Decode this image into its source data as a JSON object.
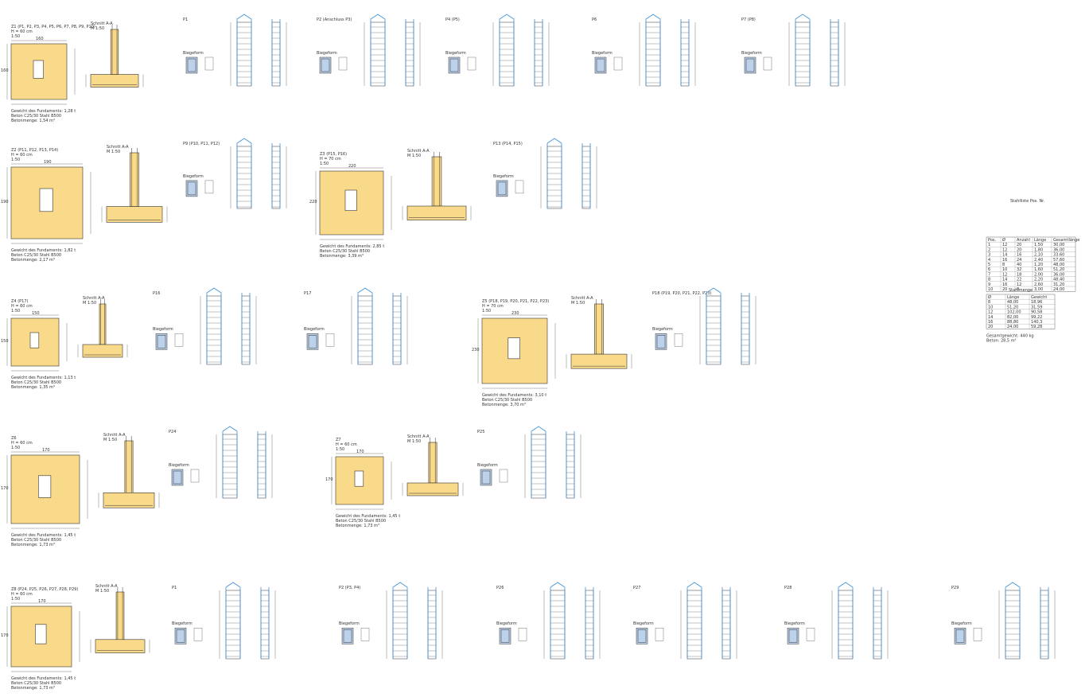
{
  "sheet": {
    "foundations": [
      {
        "id": "f1",
        "title": "Z1 (P1, P2, P3, P4, P5, P6, P7, P8, P9, P10)",
        "subtitle": "H = 60 cm",
        "scale": "1:50",
        "plan_width": "160",
        "plan_height": "160",
        "note1": "Gewicht des Fundaments: 1,28 t",
        "note2": "Beton C25/30 Stahl B500",
        "note3": "Betonmenge: 1,54 m³"
      },
      {
        "id": "f2",
        "title": "Z2 (P11, P12, P13, P14)",
        "subtitle": "H = 60 cm",
        "scale": "1:50",
        "plan_width": "190",
        "plan_height": "190",
        "note1": "Gewicht des Fundaments: 1,82 t",
        "note2": "Beton C25/30 Stahl B500",
        "note3": "Betonmenge: 2,17 m³"
      },
      {
        "id": "f3",
        "title": "Z3 (P15, P16)",
        "subtitle": "H = 70 cm",
        "scale": "1:50",
        "plan_width": "220",
        "plan_height": "220",
        "note1": "Gewicht des Fundaments: 2,85 t",
        "note2": "Beton C25/30 Stahl B500",
        "note3": "Betonmenge: 3,39 m³"
      },
      {
        "id": "f4",
        "title": "Z4 (P17)",
        "subtitle": "H = 60 cm",
        "scale": "1:50",
        "plan_width": "150",
        "plan_height": "150",
        "note1": "Gewicht des Fundaments: 1,13 t",
        "note2": "Beton C25/30 Stahl B500",
        "note3": "Betonmenge: 1,35 m³"
      },
      {
        "id": "f5",
        "title": "Z5 (P18, P19, P20, P21, P22, P23)",
        "subtitle": "H = 70 cm",
        "scale": "1:50",
        "plan_width": "230",
        "plan_height": "230",
        "note1": "Gewicht des Fundaments: 3,10 t",
        "note2": "Beton C25/30 Stahl B500",
        "note3": "Betonmenge: 3,70 m³"
      },
      {
        "id": "f6",
        "title": "Z6",
        "subtitle": "H = 60 cm",
        "scale": "1:50",
        "plan_width": "170",
        "plan_height": "170",
        "note1": "Gewicht des Fundaments: 1,45 t",
        "note2": "Beton C25/30 Stahl B500",
        "note3": "Betonmenge: 1,73 m³"
      },
      {
        "id": "f7",
        "title": "Z7",
        "subtitle": "H = 60 cm",
        "scale": "1:50",
        "plan_width": "170",
        "plan_height": "170",
        "note1": "Gewicht des Fundaments: 1,45 t",
        "note2": "Beton C25/30 Stahl B500",
        "note3": "Betonmenge: 1,73 m³"
      },
      {
        "id": "f8",
        "title": "Z8 (P24, P25, P26, P27, P28, P29)",
        "subtitle": "H = 60 cm",
        "scale": "1:50",
        "plan_width": "170",
        "plan_height": "170",
        "note1": "Gewicht des Fundaments: 1,45 t",
        "note2": "Beton C25/30 Stahl B500",
        "note3": "Betonmenge: 1,73 m³"
      }
    ],
    "columns": [
      {
        "id": "c1",
        "label": "P1"
      },
      {
        "id": "c2",
        "label": "P2 (Anschluss P3)"
      },
      {
        "id": "c3",
        "label": "P4 (P5)"
      },
      {
        "id": "c4",
        "label": "P6"
      },
      {
        "id": "c5",
        "label": "P7 (P8)"
      },
      {
        "id": "c6",
        "label": "P9 (P10, P11, P12)"
      },
      {
        "id": "c7",
        "label": "P13 (P14, P15)"
      },
      {
        "id": "c8",
        "label": "P16"
      },
      {
        "id": "c9",
        "label": "P17"
      },
      {
        "id": "c10",
        "label": "P18 (P19, P20, P21, P22, P23)"
      },
      {
        "id": "c11",
        "label": "P24"
      },
      {
        "id": "c12",
        "label": "P25"
      },
      {
        "id": "c13",
        "label": "P1"
      },
      {
        "id": "c14",
        "label": "P2 (P3, P4)"
      },
      {
        "id": "c15",
        "label": "P26"
      },
      {
        "id": "c16",
        "label": "P27"
      },
      {
        "id": "c17",
        "label": "P28"
      },
      {
        "id": "c18",
        "label": "P29"
      }
    ],
    "section_label": "Schnitt A-A",
    "scale_label": "M 1:50",
    "bending_label": "Biegeform",
    "steel_table": {
      "title": "Stahlliste Pos. Nr.",
      "header": [
        "Pos.",
        "Ø",
        "Anzahl",
        "Länge",
        "Gesamtlänge"
      ],
      "rows": [
        [
          "1",
          "12",
          "20",
          "1,50",
          "30,00"
        ],
        [
          "2",
          "12",
          "20",
          "1,80",
          "36,00"
        ],
        [
          "3",
          "14",
          "16",
          "2,10",
          "33,60"
        ],
        [
          "4",
          "16",
          "24",
          "2,40",
          "57,60"
        ],
        [
          "5",
          "8",
          "40",
          "1,20",
          "48,00"
        ],
        [
          "6",
          "10",
          "32",
          "1,60",
          "51,20"
        ],
        [
          "7",
          "12",
          "18",
          "2,00",
          "36,00"
        ],
        [
          "8",
          "14",
          "22",
          "2,20",
          "48,40"
        ],
        [
          "9",
          "16",
          "12",
          "2,60",
          "31,20"
        ],
        [
          "10",
          "20",
          "8",
          "3,00",
          "24,00"
        ]
      ]
    },
    "summary_table": {
      "title": "Stahlmenge",
      "header": [
        "Ø",
        "Länge",
        "Gewicht"
      ],
      "rows": [
        [
          "8",
          "48,00",
          "18,96"
        ],
        [
          "10",
          "51,20",
          "31,59"
        ],
        [
          "12",
          "102,00",
          "90,58"
        ],
        [
          "14",
          "82,00",
          "99,22"
        ],
        [
          "16",
          "88,80",
          "140,3"
        ],
        [
          "20",
          "24,00",
          "59,28"
        ]
      ],
      "note1": "Gesamtgewicht: 440 kg",
      "note2": "Beton: 28,5 m³"
    },
    "colors": {
      "concrete": "#f9d98a",
      "rebar_blue": "#3b8fd6",
      "section_blue": "#bcd2ea"
    }
  }
}
